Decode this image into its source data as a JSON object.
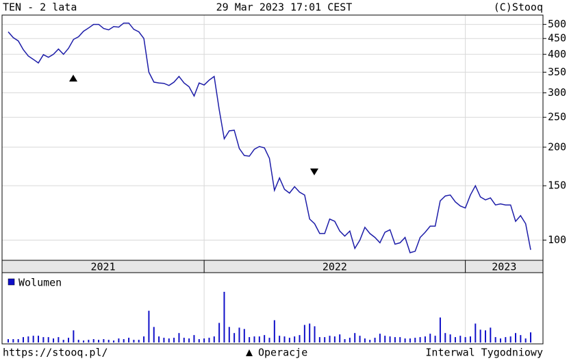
{
  "chart_data": [
    {
      "type": "line",
      "title": "TEN - 2 lata",
      "subtitle": "29 Mar 2023 17:01 CEST",
      "source": "(C)Stooq",
      "color": "#1c1ca8",
      "yscale": "log",
      "grid": true,
      "ylim": [
        86,
        536
      ],
      "yticks": [
        100,
        150,
        200,
        250,
        300,
        350,
        400,
        450,
        500
      ],
      "period_labels": [
        "2021",
        "2022",
        "2023"
      ],
      "period_breaks": [
        39,
        91
      ],
      "values": [
        473,
        453,
        442,
        414,
        395,
        385,
        375,
        399,
        391,
        400,
        416,
        400,
        418,
        447,
        456,
        475,
        487,
        500,
        500,
        485,
        480,
        492,
        490,
        505,
        505,
        482,
        473,
        450,
        350,
        325,
        323,
        322,
        317,
        325,
        339,
        323,
        314,
        293,
        323,
        318,
        330,
        339,
        265,
        213,
        226,
        227,
        198,
        188,
        187,
        197,
        201,
        199,
        184,
        145,
        159,
        146,
        142,
        149,
        143,
        140,
        117,
        113,
        105,
        105,
        117,
        115,
        107,
        103,
        107,
        94,
        100,
        110,
        105,
        102,
        98,
        106,
        108,
        97,
        98,
        102,
        91,
        92,
        102,
        106,
        111,
        111,
        134,
        139,
        140,
        133,
        129,
        127,
        140,
        150,
        138,
        135,
        137,
        130,
        131,
        130,
        130,
        115,
        120,
        113,
        93
      ]
    },
    {
      "type": "bar",
      "series": [
        {
          "name": "Wolumen",
          "color": "#0f0fc8",
          "values": [
            5,
            5,
            5,
            8,
            9,
            10,
            10,
            8,
            8,
            6,
            8,
            4,
            7,
            18,
            4,
            3,
            4,
            5,
            4,
            5,
            4,
            3,
            6,
            5,
            7,
            4,
            4,
            9,
            47,
            23,
            9,
            7,
            6,
            7,
            14,
            7,
            6,
            11,
            5,
            6,
            7,
            9,
            29,
            75,
            23,
            14,
            22,
            20,
            8,
            9,
            9,
            11,
            7,
            33,
            10,
            9,
            7,
            9,
            11,
            26,
            28,
            24,
            8,
            8,
            10,
            9,
            12,
            5,
            7,
            14,
            10,
            6,
            4,
            7,
            13,
            10,
            9,
            8,
            8,
            6,
            6,
            7,
            8,
            9,
            13,
            10,
            37,
            14,
            12,
            8,
            10,
            8,
            9,
            28,
            19,
            18,
            22,
            8,
            6,
            8,
            9,
            14,
            11,
            6,
            15
          ]
        }
      ]
    }
  ],
  "footer": {
    "url": "https://stooq.pl/",
    "operations": "Operacje",
    "interval": "Interwal Tygodniowy"
  }
}
